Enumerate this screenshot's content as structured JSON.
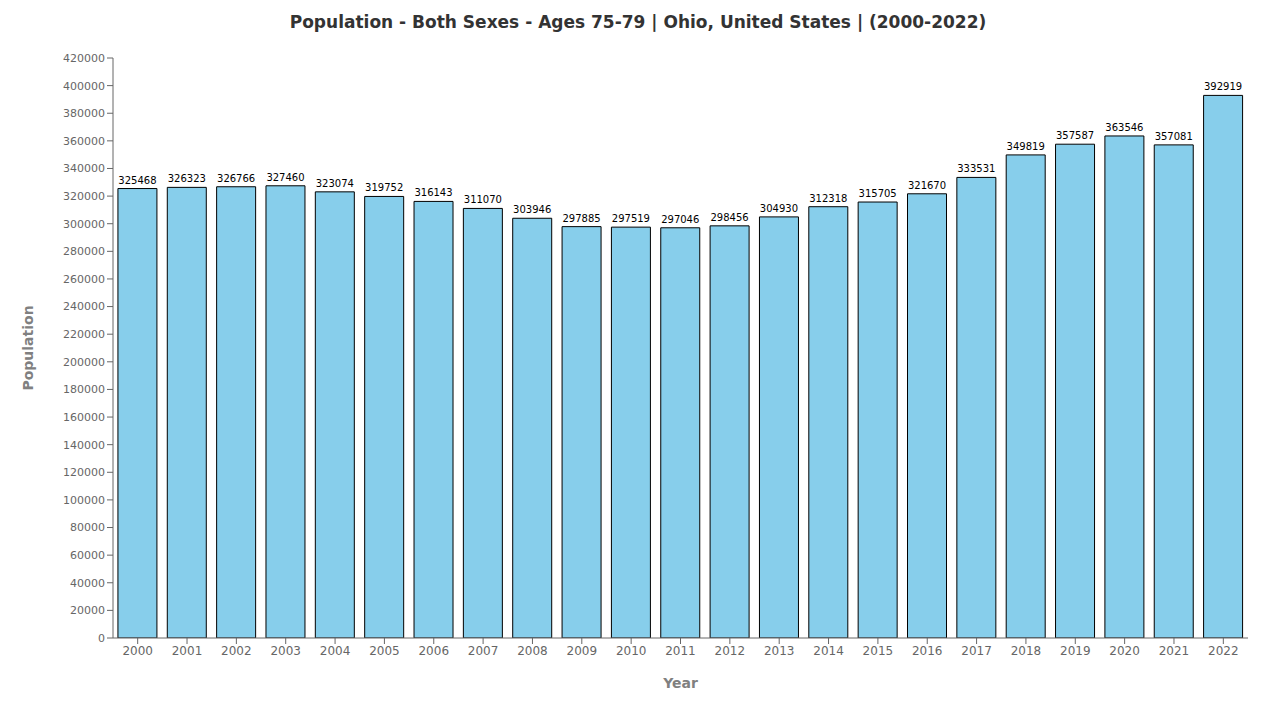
{
  "chart_data": {
    "type": "bar",
    "title": "Population - Both Sexes - Ages 75-79 | Ohio, United States |  (2000-2022)",
    "x_label": "Year",
    "y_label": "Population",
    "categories": [
      "2000",
      "2001",
      "2002",
      "2003",
      "2004",
      "2005",
      "2006",
      "2007",
      "2008",
      "2009",
      "2010",
      "2011",
      "2012",
      "2013",
      "2014",
      "2015",
      "2016",
      "2017",
      "2018",
      "2019",
      "2020",
      "2021",
      "2022"
    ],
    "values": [
      325468,
      326323,
      326766,
      327460,
      323074,
      319752,
      316143,
      311070,
      303946,
      297885,
      297519,
      297046,
      298456,
      304930,
      312318,
      315705,
      321670,
      333531,
      349819,
      357587,
      363546,
      357081,
      392919
    ],
    "color": "#87CEEB",
    "ylim": [
      0,
      420000
    ],
    "yticks": [
      0,
      20000,
      40000,
      60000,
      80000,
      100000,
      120000,
      140000,
      160000,
      180000,
      200000,
      220000,
      240000,
      260000,
      280000,
      300000,
      320000,
      340000,
      360000,
      380000,
      400000,
      420000
    ],
    "grid": false,
    "data_labels": true
  }
}
